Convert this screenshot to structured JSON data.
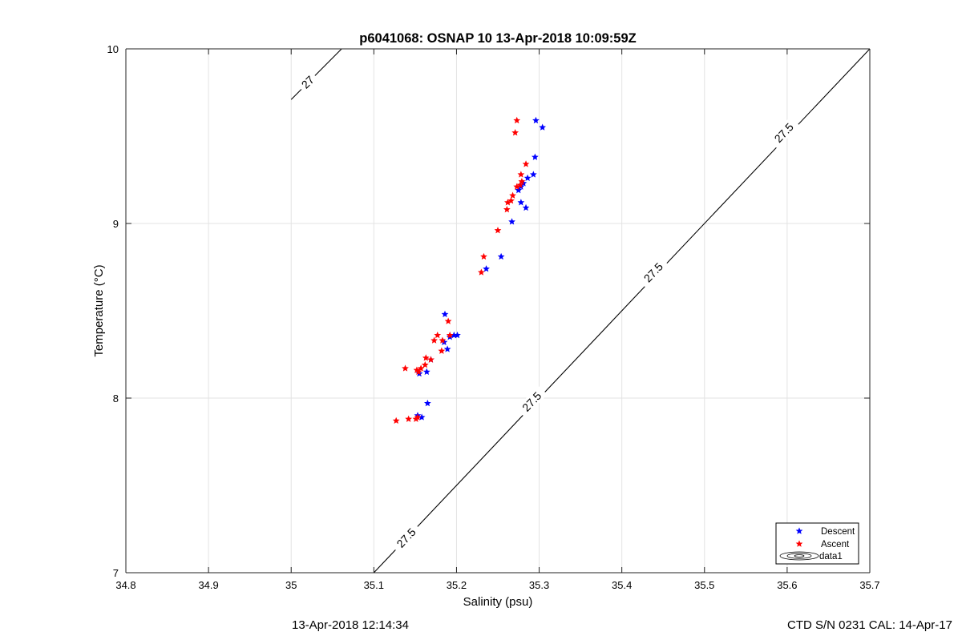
{
  "chart_data": {
    "type": "scatter",
    "title": "p6041068: OSNAP 10 13-Apr-2018 10:09:59Z",
    "xlabel": "Salinity (psu)",
    "ylabel": "Temperature (°C)",
    "xlim": [
      34.8,
      35.7
    ],
    "ylim": [
      7,
      10
    ],
    "xticks": [
      "34.8",
      "34.9",
      "35",
      "35.1",
      "35.2",
      "35.3",
      "35.4",
      "35.5",
      "35.6",
      "35.7"
    ],
    "yticks": [
      "7",
      "8",
      "9",
      "10"
    ],
    "grid": true,
    "legend_position": "bottom-right",
    "series": [
      {
        "name": "Descent",
        "color": "#0000ff",
        "marker": "pentagram",
        "points": [
          [
            35.296,
            9.59
          ],
          [
            35.304,
            9.55
          ],
          [
            35.295,
            9.38
          ],
          [
            35.293,
            9.28
          ],
          [
            35.286,
            9.26
          ],
          [
            35.281,
            9.23
          ],
          [
            35.278,
            9.21
          ],
          [
            35.275,
            9.19
          ],
          [
            35.278,
            9.12
          ],
          [
            35.284,
            9.09
          ],
          [
            35.267,
            9.01
          ],
          [
            35.254,
            8.81
          ],
          [
            35.236,
            8.74
          ],
          [
            35.186,
            8.48
          ],
          [
            35.192,
            8.35
          ],
          [
            35.197,
            8.36
          ],
          [
            35.201,
            8.36
          ],
          [
            35.185,
            8.32
          ],
          [
            35.189,
            8.28
          ],
          [
            35.169,
            8.22
          ],
          [
            35.164,
            8.15
          ],
          [
            35.155,
            8.14
          ],
          [
            35.165,
            7.97
          ],
          [
            35.153,
            7.9
          ],
          [
            35.158,
            7.89
          ]
        ]
      },
      {
        "name": "Ascent",
        "color": "#ff0000",
        "marker": "pentagram",
        "points": [
          [
            35.273,
            9.59
          ],
          [
            35.271,
            9.52
          ],
          [
            35.284,
            9.34
          ],
          [
            35.278,
            9.28
          ],
          [
            35.279,
            9.24
          ],
          [
            35.277,
            9.22
          ],
          [
            35.273,
            9.21
          ],
          [
            35.268,
            9.16
          ],
          [
            35.266,
            9.13
          ],
          [
            35.262,
            9.12
          ],
          [
            35.261,
            9.08
          ],
          [
            35.25,
            8.96
          ],
          [
            35.233,
            8.81
          ],
          [
            35.23,
            8.72
          ],
          [
            35.19,
            8.44
          ],
          [
            35.192,
            8.36
          ],
          [
            35.177,
            8.36
          ],
          [
            35.183,
            8.33
          ],
          [
            35.173,
            8.33
          ],
          [
            35.182,
            8.27
          ],
          [
            35.163,
            8.23
          ],
          [
            35.169,
            8.22
          ],
          [
            35.162,
            8.19
          ],
          [
            35.157,
            8.17
          ],
          [
            35.152,
            8.16
          ],
          [
            35.154,
            8.15
          ],
          [
            35.138,
            8.17
          ],
          [
            35.153,
            7.89
          ],
          [
            35.151,
            7.88
          ],
          [
            35.142,
            7.88
          ],
          [
            35.127,
            7.87
          ]
        ]
      }
    ],
    "legend": [
      "Descent",
      "Ascent",
      "data1"
    ],
    "contours": [
      {
        "label": "27",
        "points": [
          [
            35.0,
            9.71
          ],
          [
            35.061,
            10.0
          ]
        ],
        "label_at": [
          35.02,
          9.81
        ]
      },
      {
        "label": "27.5",
        "points": [
          [
            35.1,
            7.0
          ],
          [
            35.7,
            10.0
          ]
        ],
        "labels_at": [
          [
            35.139,
            7.2
          ],
          [
            35.291,
            7.98
          ],
          [
            35.438,
            8.72
          ],
          [
            35.596,
            9.52
          ]
        ]
      }
    ],
    "footer_left": "13-Apr-2018 12:14:34",
    "footer_right": "CTD S/N 0231  CAL: 14-Apr-17"
  }
}
